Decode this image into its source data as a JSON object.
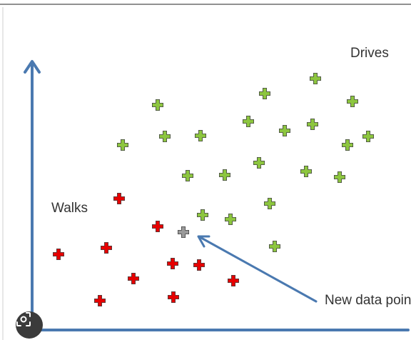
{
  "labels": {
    "drives": "Drives",
    "walks": "Walks",
    "new_point": "New data point"
  },
  "colors": {
    "axis": "#4a79b0",
    "drives": "#8dc63f",
    "walks": "#e60000",
    "new_point": "#9a9a9a"
  },
  "points": {
    "drives": [
      [
        442,
        110
      ],
      [
        371,
        131
      ],
      [
        221,
        147
      ],
      [
        494,
        142
      ],
      [
        348,
        170
      ],
      [
        399,
        183
      ],
      [
        438,
        174
      ],
      [
        231,
        191
      ],
      [
        281,
        190
      ],
      [
        172,
        203
      ],
      [
        487,
        203
      ],
      [
        516,
        191
      ],
      [
        363,
        228
      ],
      [
        429,
        240
      ],
      [
        263,
        246
      ],
      [
        315,
        245
      ],
      [
        476,
        248
      ],
      [
        378,
        285
      ],
      [
        284,
        301
      ],
      [
        323,
        307
      ],
      [
        385,
        345
      ]
    ],
    "walks": [
      [
        167,
        278
      ],
      [
        221,
        317
      ],
      [
        82,
        356
      ],
      [
        149,
        347
      ],
      [
        242,
        369
      ],
      [
        279,
        371
      ],
      [
        187,
        390
      ],
      [
        327,
        393
      ],
      [
        140,
        421
      ],
      [
        243,
        416
      ]
    ],
    "new_point": [
      257,
      325
    ]
  },
  "icons": {
    "scan_button": "lens-scan-icon"
  }
}
